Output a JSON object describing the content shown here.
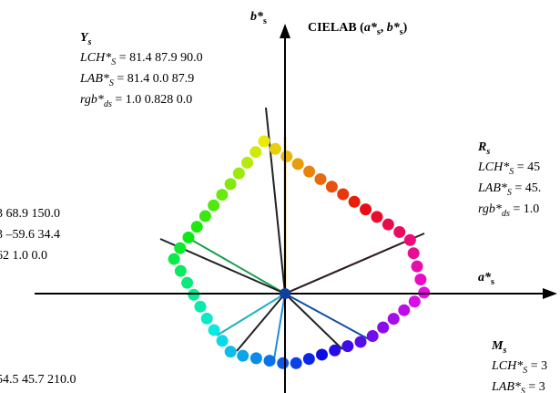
{
  "title": {
    "main": "CIELAB (",
    "a": "a*",
    "a_sub": "s",
    "sep": ", ",
    "b": "b*",
    "b_sub": "s",
    "end": ")"
  },
  "axes": {
    "b_label": "b*",
    "b_sub": "s",
    "a_label": "a*",
    "a_sub": "s"
  },
  "blocks": [
    {
      "head": "Y",
      "head_sub": "s",
      "lines": [
        {
          "prefix": "LCH*",
          "sub": "S",
          "rest": " = 81.4   87.9   90.0"
        },
        {
          "prefix": "LAB*",
          "sub": "S",
          "rest": " = 81.4   0.0   87.9"
        },
        {
          "prefix": "rgb*",
          "sub": "ds",
          "rest": " = 1.0   0.828   0.0"
        }
      ]
    },
    {
      "lines": [
        {
          "rest": "3   68.9   150.0"
        },
        {
          "rest": "3   –59.6   34.4"
        },
        {
          "rest": "62   1.0   0.0"
        }
      ]
    },
    {
      "head": "R",
      "head_sub": "s",
      "lines": [
        {
          "prefix": "LCH*",
          "sub": "S",
          "rest": " = 45"
        },
        {
          "prefix": "LAB*",
          "sub": "S",
          "rest": " = 45."
        },
        {
          "prefix": "rgb*",
          "sub": "ds",
          "rest": " = 1.0"
        }
      ]
    },
    {
      "head": "M",
      "head_sub": "s",
      "lines": [
        {
          "prefix": "LCH*",
          "sub": "S",
          "rest": " = 3"
        },
        {
          "prefix": "LAB*",
          "sub": "S",
          "rest": " = 3"
        }
      ]
    },
    {
      "lines": [
        {
          "rest": "54.5   45.7   210.0"
        }
      ]
    }
  ]
}
